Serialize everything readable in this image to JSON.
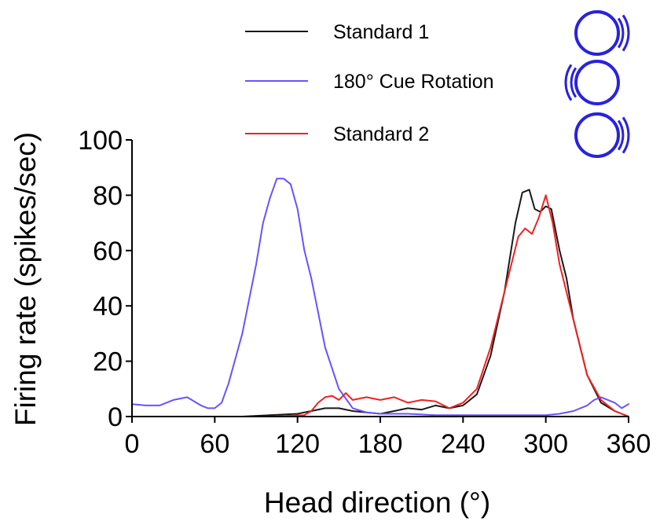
{
  "chart_data": {
    "type": "line",
    "title": "",
    "xlabel": "Head direction (°)",
    "ylabel": "Firing rate (spikes/sec)",
    "xlim": [
      0,
      360
    ],
    "ylim": [
      0,
      100
    ],
    "x_ticks": [
      "0",
      "60",
      "120",
      "180",
      "240",
      "300",
      "360"
    ],
    "y_ticks": [
      "0",
      "20",
      "40",
      "60",
      "80",
      "100"
    ],
    "grid": false,
    "legend_position": "top",
    "series": [
      {
        "name": "Standard 1",
        "color": "#1a1a1a",
        "icon": "circle-cue-right-icon",
        "x": [
          0,
          40,
          80,
          100,
          120,
          130,
          140,
          150,
          160,
          170,
          180,
          190,
          200,
          210,
          220,
          230,
          240,
          250,
          260,
          270,
          278,
          283,
          288,
          292,
          296,
          300,
          304,
          310,
          315,
          320,
          330,
          340,
          350,
          360
        ],
        "y": [
          0,
          0,
          0,
          0.5,
          1,
          2,
          3,
          3,
          2,
          1.5,
          1,
          2,
          3,
          2.5,
          4,
          3,
          4,
          8,
          22,
          45,
          70,
          81,
          82,
          75,
          74,
          76,
          75,
          60,
          50,
          35,
          15,
          5,
          2,
          0
        ]
      },
      {
        "name": "180° Cue Rotation",
        "color": "#6a52ff",
        "icon": "circle-cue-left-icon",
        "x": [
          0,
          10,
          20,
          30,
          40,
          50,
          55,
          60,
          65,
          70,
          80,
          90,
          95,
          100,
          105,
          110,
          115,
          120,
          125,
          130,
          140,
          150,
          160,
          170,
          180,
          200,
          220,
          240,
          260,
          280,
          300,
          310,
          320,
          330,
          335,
          340,
          350,
          355,
          360
        ],
        "y": [
          4.5,
          4,
          4,
          6,
          7,
          4,
          3,
          3,
          5,
          12,
          30,
          55,
          70,
          79,
          86,
          86,
          84,
          75,
          60,
          50,
          25,
          10,
          3,
          1.5,
          1,
          1,
          0.5,
          0.5,
          0.5,
          0.5,
          0.5,
          1,
          2,
          4,
          6,
          7,
          5,
          3,
          4.5
        ]
      },
      {
        "name": "Standard 2",
        "color": "#ee2222",
        "icon": "circle-cue-right-icon",
        "x": [
          0,
          60,
          100,
          125,
          130,
          135,
          140,
          145,
          150,
          155,
          160,
          170,
          180,
          190,
          200,
          210,
          220,
          230,
          240,
          250,
          260,
          270,
          280,
          285,
          290,
          295,
          300,
          305,
          310,
          320,
          330,
          340,
          350,
          360
        ],
        "y": [
          0,
          0,
          0,
          0.5,
          2,
          5,
          7,
          7.5,
          6,
          8.5,
          6,
          7,
          6,
          7,
          5,
          6,
          5.5,
          3,
          5,
          10,
          25,
          45,
          65,
          68,
          66,
          72,
          80,
          70,
          55,
          35,
          15,
          6,
          2,
          0
        ]
      }
    ]
  }
}
